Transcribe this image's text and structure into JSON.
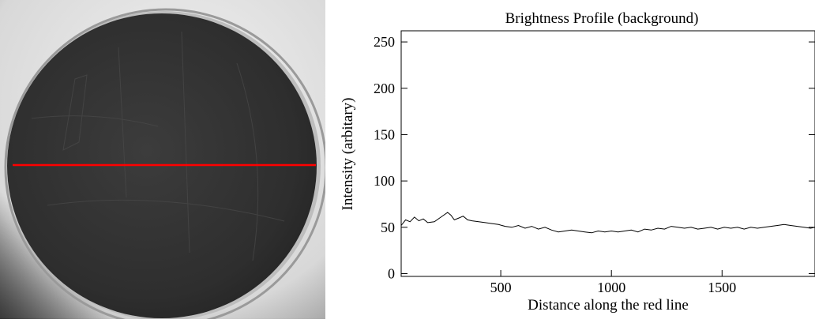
{
  "photo": {
    "description_label": "",
    "line_color": "#ff0000"
  },
  "chart_data": {
    "type": "line",
    "title": "Brightness Profile (background)",
    "xlabel": "Distance along the red line",
    "ylabel": "Intensity (arbitary)",
    "xlim": [
      50,
      1920
    ],
    "ylim": [
      -3,
      262
    ],
    "x_ticks": [
      500,
      1000,
      1500
    ],
    "y_ticks": [
      0,
      50,
      100,
      150,
      200,
      250
    ],
    "grid": false,
    "series": [
      {
        "color": "#000000",
        "x": [
          50,
          70,
          90,
          110,
          130,
          150,
          170,
          200,
          230,
          260,
          275,
          290,
          310,
          330,
          350,
          370,
          400,
          430,
          460,
          490,
          520,
          550,
          580,
          610,
          640,
          670,
          700,
          730,
          760,
          790,
          820,
          850,
          880,
          910,
          940,
          970,
          1000,
          1030,
          1060,
          1090,
          1120,
          1150,
          1180,
          1210,
          1240,
          1270,
          1300,
          1330,
          1360,
          1390,
          1420,
          1450,
          1480,
          1510,
          1540,
          1570,
          1600,
          1630,
          1660,
          1690,
          1720,
          1750,
          1780,
          1810,
          1840,
          1870,
          1900,
          1920
        ],
        "y": [
          52,
          58,
          56,
          61,
          57,
          59,
          55,
          56,
          61,
          66,
          63,
          58,
          60,
          62,
          58,
          57,
          56,
          55,
          54,
          53,
          51,
          50,
          52,
          49,
          51,
          48,
          50,
          47,
          45,
          46,
          47,
          46,
          45,
          44,
          46,
          45,
          46,
          45,
          46,
          47,
          45,
          48,
          47,
          49,
          48,
          51,
          50,
          49,
          50,
          48,
          49,
          50,
          48,
          50,
          49,
          50,
          48,
          50,
          49,
          50,
          51,
          52,
          53,
          52,
          51,
          50,
          49,
          50
        ]
      }
    ]
  }
}
